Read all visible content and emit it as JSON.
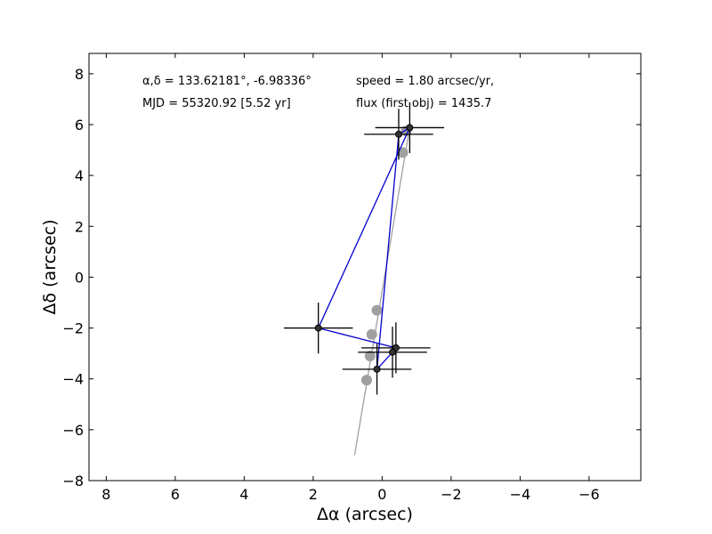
{
  "chart_data": {
    "type": "scatter",
    "title": "",
    "xlabel": "Δα (arcsec)",
    "ylabel": "Δδ (arcsec)",
    "xlim": [
      8.5,
      -7.5
    ],
    "ylim": [
      -8,
      8.8
    ],
    "x_axis_reversed": true,
    "grid": false,
    "xticks": [
      8,
      6,
      4,
      2,
      0,
      -2,
      -4,
      -6
    ],
    "xtick_labels": [
      "8",
      "6",
      "4",
      "2",
      "0",
      "−2",
      "−4",
      "−6"
    ],
    "yticks": [
      8,
      6,
      4,
      2,
      0,
      -2,
      -4,
      -6,
      -8
    ],
    "ytick_labels": [
      "8",
      "6",
      "4",
      "2",
      "0",
      "−2",
      "−4",
      "−6",
      "−8"
    ],
    "annotations": {
      "coords": "α,δ = 133.62181°, -6.98336°",
      "mjd": "MJD = 55320.92 [5.52 yr]",
      "speed": "speed = 1.80 arcsec/yr,",
      "flux": "flux (first obj) = 1435.7"
    },
    "series": [
      {
        "kind": "model-track",
        "color": "#a0a0a0",
        "x": [
          -0.8,
          0.8
        ],
        "y": [
          5.9,
          -7.0
        ]
      },
      {
        "kind": "model-positions",
        "color": "#a0a0a0",
        "x": [
          -0.7,
          -0.6,
          0.15,
          0.3,
          0.35,
          0.45
        ],
        "y": [
          5.75,
          4.9,
          -1.3,
          -2.25,
          -3.1,
          -4.05
        ]
      },
      {
        "kind": "observed-path",
        "color": "#0000cc",
        "x": [
          -0.48,
          -0.8,
          1.85,
          -0.4,
          -0.3,
          0.15,
          -0.48
        ],
        "y": [
          5.62,
          5.88,
          -2.0,
          -2.78,
          -2.95,
          -3.62,
          5.62
        ]
      },
      {
        "kind": "observations",
        "color": "#000000",
        "x": [
          -0.48,
          -0.8,
          1.85,
          -0.4,
          -0.3,
          0.15
        ],
        "y": [
          5.62,
          5.88,
          -2.0,
          -2.78,
          -2.95,
          -3.62
        ],
        "xerr": [
          1.0,
          1.0,
          1.0,
          1.0,
          1.0,
          1.0
        ],
        "yerr": [
          1.0,
          1.0,
          1.0,
          1.0,
          1.0,
          1.0
        ]
      }
    ]
  }
}
